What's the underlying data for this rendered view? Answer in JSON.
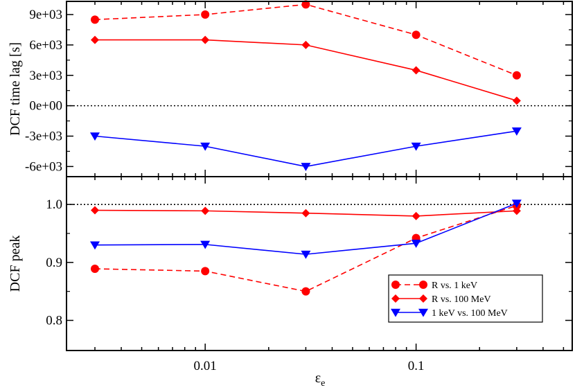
{
  "chart_data": [
    {
      "type": "line",
      "panel": "top",
      "title": "",
      "xlabel": "",
      "ylabel": "DCF time lag [s]",
      "xscale": "log",
      "xlim": [
        0.0022,
        0.55
      ],
      "ylim": [
        -7000,
        10300
      ],
      "yticks": [
        -6000,
        -3000,
        0,
        3000,
        6000,
        9000
      ],
      "ytick_labels": [
        "-6e+03",
        "-3e+03",
        "0e+00",
        "3e+03",
        "6e+03",
        "9e+03"
      ],
      "reference_line": 0,
      "x": [
        0.003,
        0.01,
        0.03,
        0.1,
        0.3
      ],
      "series": [
        {
          "name": "R vs. 1 keV",
          "color": "#ff0000",
          "marker": "circle",
          "dash": "dashed",
          "values": [
            8500,
            9000,
            10000,
            7000,
            3000
          ]
        },
        {
          "name": "R vs. 100 MeV",
          "color": "#ff0000",
          "marker": "diamond",
          "dash": "solid",
          "values": [
            6500,
            6500,
            6000,
            3500,
            500
          ]
        },
        {
          "name": "1 keV vs. 100 MeV",
          "color": "#0000ff",
          "marker": "triangle-down",
          "dash": "solid",
          "values": [
            -3000,
            -4000,
            -6000,
            -4000,
            -2500
          ]
        }
      ]
    },
    {
      "type": "line",
      "panel": "bottom",
      "title": "",
      "xlabel": "ε",
      "xlabel_sub": "e",
      "ylabel": "DCF peak",
      "xscale": "log",
      "xlim": [
        0.0022,
        0.55
      ],
      "ylim": [
        0.748,
        1.048
      ],
      "yticks": [
        0.8,
        0.9,
        1.0
      ],
      "ytick_labels": [
        "0.8",
        "0.9",
        "1.0"
      ],
      "xticks": [
        0.01,
        0.1
      ],
      "xtick_labels": [
        "0.01",
        "0.1"
      ],
      "reference_line": 1.0,
      "x": [
        0.003,
        0.01,
        0.03,
        0.1,
        0.3
      ],
      "legend_position": "bottom-right",
      "series": [
        {
          "name": "R vs. 1 keV",
          "color": "#ff0000",
          "marker": "circle",
          "dash": "dashed",
          "values": [
            0.889,
            0.885,
            0.85,
            0.942,
            0.998
          ]
        },
        {
          "name": "R vs. 100 MeV",
          "color": "#ff0000",
          "marker": "diamond",
          "dash": "solid",
          "values": [
            0.99,
            0.989,
            0.985,
            0.98,
            0.989
          ]
        },
        {
          "name": "1 keV vs. 100 MeV",
          "color": "#0000ff",
          "marker": "triangle-down",
          "dash": "solid",
          "values": [
            0.93,
            0.931,
            0.914,
            0.933,
            1.002
          ]
        }
      ]
    }
  ]
}
